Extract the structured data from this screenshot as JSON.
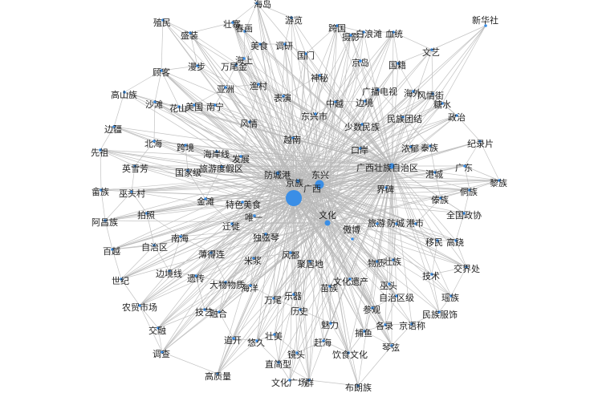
{
  "graph": {
    "title": "",
    "node_color": "#3a8ee6",
    "edge_color": "#b9b9b9",
    "hub_nodes": [
      "广西",
      "东兴",
      "广西壮族自治区"
    ],
    "nodes": [
      {
        "id": "海岛",
        "label": "海岛",
        "weight": 1
      },
      {
        "id": "殖民",
        "label": "殖民",
        "weight": 1
      },
      {
        "id": "壮寨",
        "label": "壮寨",
        "weight": 1
      },
      {
        "id": "游览",
        "label": "游览",
        "weight": 1
      },
      {
        "id": "跨国",
        "label": "跨国",
        "weight": 1
      },
      {
        "id": "新华社",
        "label": "新华社",
        "weight": 1
      },
      {
        "id": "盛装",
        "label": "盛装",
        "weight": 1
      },
      {
        "id": "春画",
        "label": "春画",
        "weight": 1
      },
      {
        "id": "摄影",
        "label": "摄影",
        "weight": 1
      },
      {
        "id": "白浪滩",
        "label": "白浪滩",
        "weight": 1
      },
      {
        "id": "血统",
        "label": "血统",
        "weight": 1
      },
      {
        "id": "美食",
        "label": "美食",
        "weight": 1
      },
      {
        "id": "调研",
        "label": "调研",
        "weight": 1
      },
      {
        "id": "文艺",
        "label": "文艺",
        "weight": 1
      },
      {
        "id": "国门",
        "label": "国门",
        "weight": 1
      },
      {
        "id": "海上",
        "label": "海上",
        "weight": 1
      },
      {
        "id": "京岛",
        "label": "京岛",
        "weight": 1
      },
      {
        "id": "国籍",
        "label": "国籍",
        "weight": 1
      },
      {
        "id": "顾客",
        "label": "顾客",
        "weight": 1
      },
      {
        "id": "漫步",
        "label": "漫步",
        "weight": 1
      },
      {
        "id": "万尾金",
        "label": "万尾金",
        "weight": 1
      },
      {
        "id": "神秘",
        "label": "神秘",
        "weight": 1
      },
      {
        "id": "亚洲",
        "label": "亚洲",
        "weight": 1
      },
      {
        "id": "渔村",
        "label": "渔村",
        "weight": 1
      },
      {
        "id": "广播电视",
        "label": "广播电视",
        "weight": 1
      },
      {
        "id": "海外",
        "label": "海外",
        "weight": 1
      },
      {
        "id": "风情街",
        "label": "风情街",
        "weight": 1
      },
      {
        "id": "高山族",
        "label": "高山族",
        "weight": 1
      },
      {
        "id": "沙滩",
        "label": "沙滩",
        "weight": 1
      },
      {
        "id": "表演",
        "label": "表演",
        "weight": 1
      },
      {
        "id": "中越",
        "label": "中越",
        "weight": 1
      },
      {
        "id": "边境",
        "label": "边境",
        "weight": 1
      },
      {
        "id": "糖水",
        "label": "糖水",
        "weight": 1
      },
      {
        "id": "花山",
        "label": "花山",
        "weight": 1
      },
      {
        "id": "美国",
        "label": "美国",
        "weight": 1
      },
      {
        "id": "南宁",
        "label": "南宁",
        "weight": 1
      },
      {
        "id": "政治",
        "label": "政治",
        "weight": 1
      },
      {
        "id": "东兴市",
        "label": "东兴市",
        "weight": 1
      },
      {
        "id": "民族团结",
        "label": "民族团结",
        "weight": 1
      },
      {
        "id": "边疆",
        "label": "边疆",
        "weight": 1
      },
      {
        "id": "风情",
        "label": "风情",
        "weight": 1
      },
      {
        "id": "少数民族",
        "label": "少数民族",
        "weight": 1
      },
      {
        "id": "先祖",
        "label": "先祖",
        "weight": 1
      },
      {
        "id": "北海",
        "label": "北海",
        "weight": 1
      },
      {
        "id": "越南",
        "label": "越南",
        "weight": 1
      },
      {
        "id": "浓郁",
        "label": "浓郁",
        "weight": 1
      },
      {
        "id": "泰族",
        "label": "泰族",
        "weight": 1
      },
      {
        "id": "纪录片",
        "label": "纪录片",
        "weight": 1
      },
      {
        "id": "跨境",
        "label": "跨境",
        "weight": 1
      },
      {
        "id": "口岸",
        "label": "口岸",
        "weight": 1
      },
      {
        "id": "海岸线",
        "label": "海岸线",
        "weight": 1
      },
      {
        "id": "发展",
        "label": "发展",
        "weight": 1
      },
      {
        "id": "英雪芳",
        "label": "英雪芳",
        "weight": 1
      },
      {
        "id": "旅游度假区",
        "label": "旅游度假区",
        "weight": 1
      },
      {
        "id": "广西壮族自治区",
        "label": "广西壮族自治区",
        "weight": 3
      },
      {
        "id": "广东",
        "label": "广东",
        "weight": 1
      },
      {
        "id": "国家级",
        "label": "国家级",
        "weight": 1
      },
      {
        "id": "防城港",
        "label": "防城港",
        "weight": 2
      },
      {
        "id": "东兴",
        "label": "东兴",
        "weight": 4
      },
      {
        "id": "港城",
        "label": "港城",
        "weight": 1
      },
      {
        "id": "黎族",
        "label": "黎族",
        "weight": 1
      },
      {
        "id": "畲族",
        "label": "畲族",
        "weight": 1
      },
      {
        "id": "巫头村",
        "label": "巫头村",
        "weight": 1
      },
      {
        "id": "京族",
        "label": "京族",
        "weight": 2
      },
      {
        "id": "广西",
        "label": "广西",
        "weight": 8
      },
      {
        "id": "界碑",
        "label": "界碑",
        "weight": 1
      },
      {
        "id": "侗族",
        "label": "侗族",
        "weight": 1
      },
      {
        "id": "金滩",
        "label": "金滩",
        "weight": 1
      },
      {
        "id": "特色美食",
        "label": "特色美食",
        "weight": 1
      },
      {
        "id": "傣族",
        "label": "傣族",
        "weight": 1
      },
      {
        "id": "文化",
        "label": "文化",
        "weight": 3
      },
      {
        "id": "全国政协",
        "label": "全国政协",
        "weight": 1
      },
      {
        "id": "阿昌族",
        "label": "阿昌族",
        "weight": 1
      },
      {
        "id": "拍照",
        "label": "拍照",
        "weight": 1
      },
      {
        "id": "迁徙",
        "label": "迁徙",
        "weight": 1
      },
      {
        "id": "唯一",
        "label": "唯一",
        "weight": 1
      },
      {
        "id": "旅游",
        "label": "旅游",
        "weight": 1
      },
      {
        "id": "防城",
        "label": "防城",
        "weight": 1
      },
      {
        "id": "港市",
        "label": "港市",
        "weight": 1
      },
      {
        "id": "独弦琴",
        "label": "独弦琴",
        "weight": 1
      },
      {
        "id": "南海",
        "label": "南海",
        "weight": 1
      },
      {
        "id": "傲博",
        "label": "傲博",
        "weight": 1
      },
      {
        "id": "移民",
        "label": "移民",
        "weight": 1
      },
      {
        "id": "高跷",
        "label": "高跷",
        "weight": 1
      },
      {
        "id": "百越",
        "label": "百越",
        "weight": 1
      },
      {
        "id": "自治区",
        "label": "自治区",
        "weight": 1
      },
      {
        "id": "薄得连",
        "label": "薄得连",
        "weight": 1
      },
      {
        "id": "风都",
        "label": "风都",
        "weight": 1
      },
      {
        "id": "米浆",
        "label": "米浆",
        "weight": 1
      },
      {
        "id": "聚居地",
        "label": "聚居地",
        "weight": 1
      },
      {
        "id": "物质",
        "label": "物质",
        "weight": 1
      },
      {
        "id": "壮族",
        "label": "壮族",
        "weight": 1
      },
      {
        "id": "交界处",
        "label": "交界处",
        "weight": 1
      },
      {
        "id": "边境线",
        "label": "边境线",
        "weight": 1
      },
      {
        "id": "遗传",
        "label": "遗传",
        "weight": 1
      },
      {
        "id": "技术",
        "label": "技术",
        "weight": 1
      },
      {
        "id": "世纪",
        "label": "世纪",
        "weight": 1
      },
      {
        "id": "大物物质",
        "label": "大物物质",
        "weight": 1
      },
      {
        "id": "文化遗产",
        "label": "文化遗产",
        "weight": 1
      },
      {
        "id": "巫头",
        "label": "巫头",
        "weight": 1
      },
      {
        "id": "海洋",
        "label": "海洋",
        "weight": 1
      },
      {
        "id": "苗族",
        "label": "苗族",
        "weight": 1
      },
      {
        "id": "自治区级",
        "label": "自治区级",
        "weight": 1
      },
      {
        "id": "瑶族",
        "label": "瑶族",
        "weight": 1
      },
      {
        "id": "万尾",
        "label": "万尾",
        "weight": 1
      },
      {
        "id": "乐器",
        "label": "乐器",
        "weight": 1
      },
      {
        "id": "农贸市场",
        "label": "农贸市场",
        "weight": 1
      },
      {
        "id": "技艺",
        "label": "技艺",
        "weight": 1
      },
      {
        "id": "融合",
        "label": "融合",
        "weight": 1
      },
      {
        "id": "历史",
        "label": "历史",
        "weight": 1
      },
      {
        "id": "参观",
        "label": "参观",
        "weight": 1
      },
      {
        "id": "民族服饰",
        "label": "民族服饰",
        "weight": 1
      },
      {
        "id": "交融",
        "label": "交融",
        "weight": 1
      },
      {
        "id": "魅力",
        "label": "魅力",
        "weight": 1
      },
      {
        "id": "各录",
        "label": "各录",
        "weight": 1
      },
      {
        "id": "京语称",
        "label": "京语称",
        "weight": 1
      },
      {
        "id": "捕鱼",
        "label": "捕鱼",
        "weight": 1
      },
      {
        "id": "道开",
        "label": "道开",
        "weight": 1
      },
      {
        "id": "悠久",
        "label": "悠久",
        "weight": 1
      },
      {
        "id": "壮美",
        "label": "壮美",
        "weight": 1
      },
      {
        "id": "调查",
        "label": "调查",
        "weight": 1
      },
      {
        "id": "赶海",
        "label": "赶海",
        "weight": 1
      },
      {
        "id": "琴弦",
        "label": "琴弦",
        "weight": 1
      },
      {
        "id": "镜头",
        "label": "镜头",
        "weight": 1
      },
      {
        "id": "饮食文化",
        "label": "饮食文化",
        "weight": 1
      },
      {
        "id": "直简型",
        "label": "直简型",
        "weight": 1
      },
      {
        "id": "高质量",
        "label": "高质量",
        "weight": 1
      },
      {
        "id": "文化广场",
        "label": "文化广场",
        "weight": 1
      },
      {
        "id": "群",
        "label": "群",
        "weight": 1
      },
      {
        "id": "布朗族",
        "label": "布朗族",
        "weight": 1
      }
    ]
  }
}
